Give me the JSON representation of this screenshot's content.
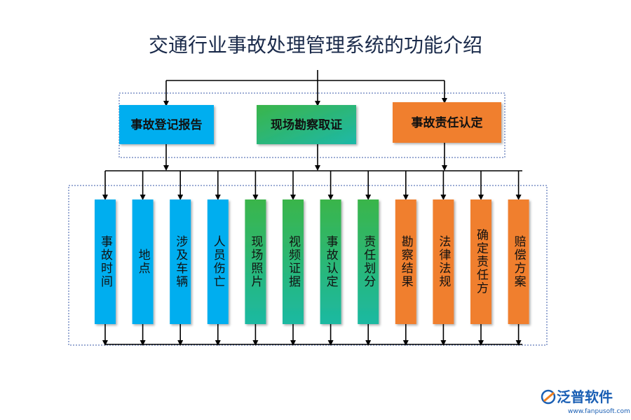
{
  "title": "交通行业事故处理管理系统的功能介绍",
  "top_boxes": [
    {
      "label": "事故登记报告"
    },
    {
      "label": "现场勘察取证"
    },
    {
      "label": "事故责任认定"
    }
  ],
  "items": [
    {
      "label": "事故时间"
    },
    {
      "label": "地点"
    },
    {
      "label": "涉及车辆"
    },
    {
      "label": "人员伤亡"
    },
    {
      "label": "现场照片"
    },
    {
      "label": "视频证据"
    },
    {
      "label": "事故认定"
    },
    {
      "label": "责任划分"
    },
    {
      "label": "勘察结果"
    },
    {
      "label": "法律法规"
    },
    {
      "label": "确定责任方"
    },
    {
      "label": "赔偿方案"
    }
  ],
  "logo": {
    "name": "泛普软件",
    "url": "www.fanpusoft.com"
  }
}
